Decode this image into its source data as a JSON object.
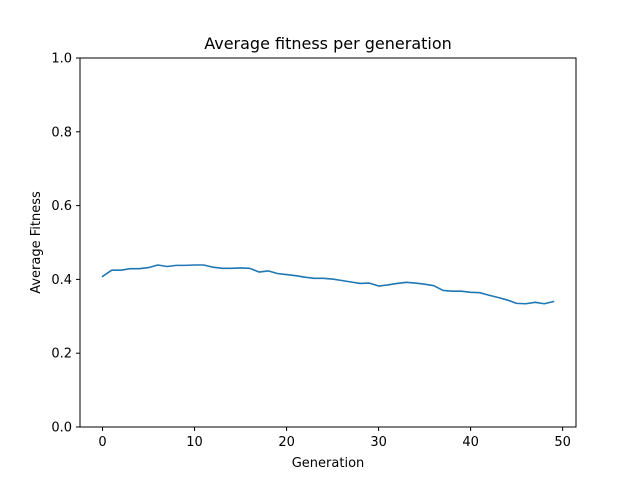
{
  "chart_data": {
    "type": "line",
    "title": "Average fitness per generation",
    "xlabel": "Generation",
    "ylabel": "Average Fitness",
    "xlim": [
      -2.45,
      51.45
    ],
    "ylim": [
      0.0,
      1.0
    ],
    "xticks": [
      0,
      10,
      20,
      30,
      40,
      50
    ],
    "xtick_labels": [
      "0",
      "10",
      "20",
      "30",
      "40",
      "50"
    ],
    "yticks": [
      0.0,
      0.2,
      0.4,
      0.6,
      0.8,
      1.0
    ],
    "ytick_labels": [
      "0.0",
      "0.2",
      "0.4",
      "0.6",
      "0.8",
      "1.0"
    ],
    "grid": false,
    "series": [
      {
        "color": "#1f77b4",
        "x": [
          0,
          1,
          2,
          3,
          4,
          5,
          6,
          7,
          8,
          9,
          10,
          11,
          12,
          13,
          14,
          15,
          16,
          17,
          18,
          19,
          20,
          21,
          22,
          23,
          24,
          25,
          26,
          27,
          28,
          29,
          30,
          31,
          32,
          33,
          34,
          35,
          36,
          37,
          38,
          39,
          40,
          41,
          42,
          43,
          44,
          45,
          46,
          47,
          48,
          49
        ],
        "y": [
          0.408,
          0.425,
          0.425,
          0.429,
          0.429,
          0.432,
          0.439,
          0.435,
          0.438,
          0.438,
          0.439,
          0.439,
          0.433,
          0.43,
          0.43,
          0.431,
          0.43,
          0.42,
          0.423,
          0.416,
          0.413,
          0.41,
          0.406,
          0.403,
          0.403,
          0.401,
          0.397,
          0.393,
          0.389,
          0.39,
          0.382,
          0.385,
          0.389,
          0.392,
          0.39,
          0.387,
          0.383,
          0.37,
          0.368,
          0.368,
          0.365,
          0.364,
          0.357,
          0.351,
          0.344,
          0.335,
          0.334,
          0.338,
          0.334,
          0.34
        ]
      }
    ]
  }
}
